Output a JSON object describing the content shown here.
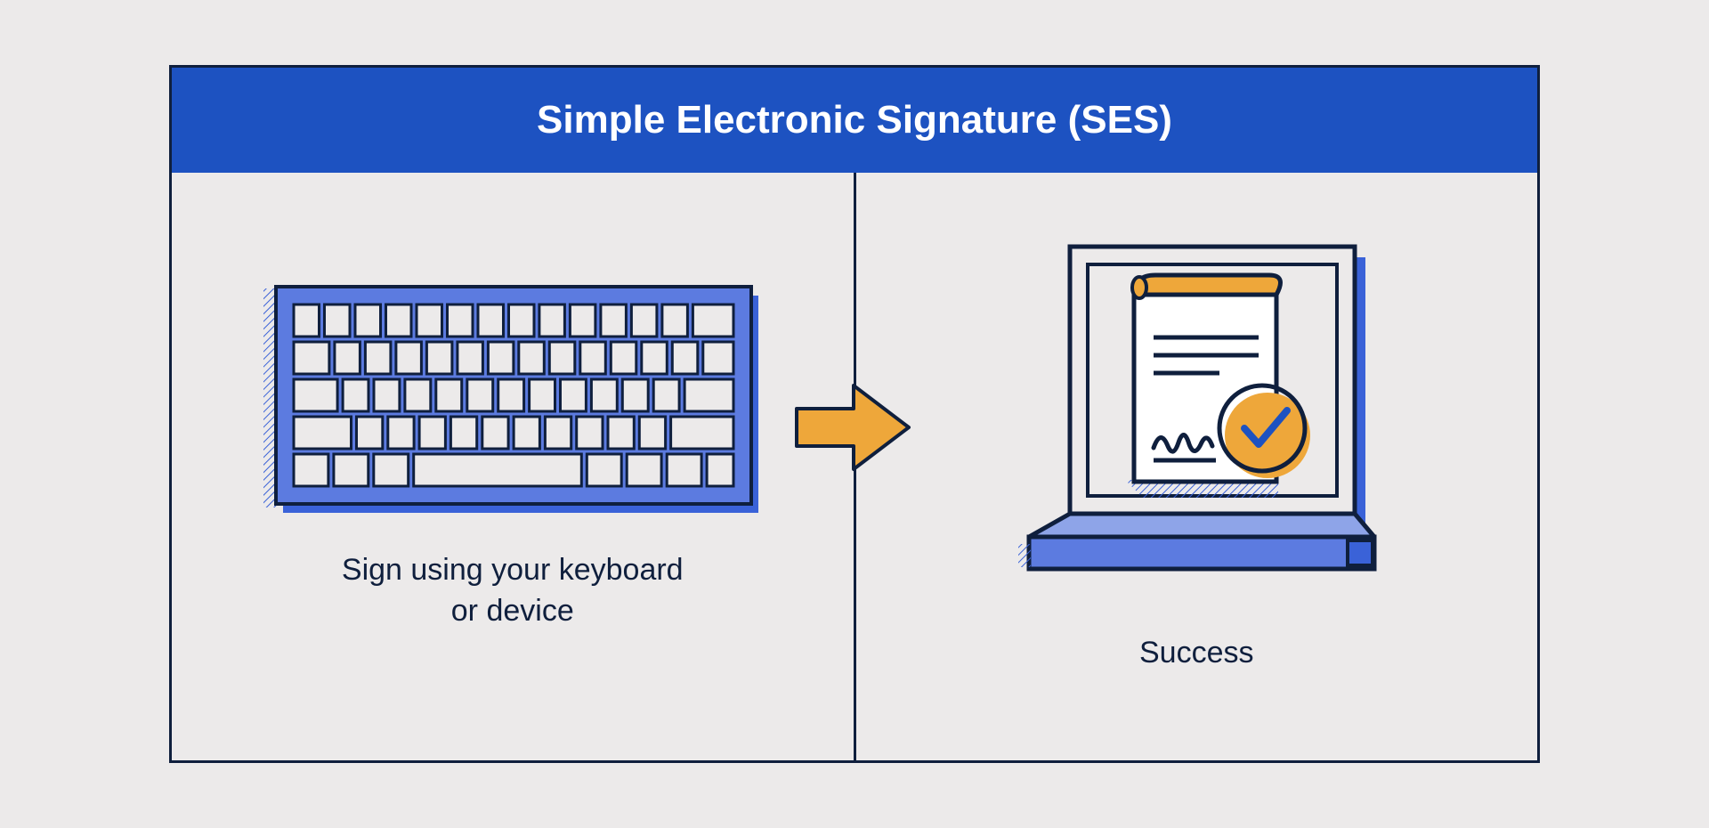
{
  "header": {
    "title": "Simple Electronic Signature (SES)",
    "background_color": "#1d52c1",
    "text_color": "#ffffff",
    "font_size_pt": 33,
    "font_weight": 700
  },
  "layout": {
    "card_border_color": "#0f1f3d",
    "card_border_width": 3,
    "background_color": "#eceaea",
    "divider_color": "#0f1f3d",
    "divider_width": 3
  },
  "left_panel": {
    "caption": "Sign using your keyboard or device",
    "icon": "keyboard-icon",
    "caption_fontsize_pt": 26,
    "caption_color": "#0f1f3d"
  },
  "arrow": {
    "fill_color": "#eea73a",
    "stroke_color": "#0f1f3d",
    "stroke_width": 3
  },
  "right_panel": {
    "caption": "Success",
    "icon": "laptop-document-icon",
    "caption_fontsize_pt": 26,
    "caption_color": "#0f1f3d"
  },
  "palette": {
    "navy": "#0f1f3d",
    "blue": "#3a62d8",
    "blue_fill": "#5c7be0",
    "orange": "#eea73a",
    "key_fill": "#eceaea",
    "white": "#ffffff"
  },
  "keyboard": {
    "outer_fill": "#5c7be0",
    "outer_stroke": "#0f1f3d",
    "key_fill": "#eceaea",
    "key_stroke": "#0f1f3d",
    "rows": [
      [
        1,
        1,
        1,
        1,
        1,
        1,
        1,
        1,
        1,
        1,
        1,
        1,
        1,
        1.6
      ],
      [
        1.4,
        1,
        1,
        1,
        1,
        1,
        1,
        1,
        1,
        1,
        1,
        1,
        1,
        1.2
      ],
      [
        1.7,
        1,
        1,
        1,
        1,
        1,
        1,
        1,
        1,
        1,
        1,
        1,
        1.9
      ],
      [
        2.2,
        1,
        1,
        1,
        1,
        1,
        1,
        1,
        1,
        1,
        1,
        2.4
      ],
      [
        1.3,
        1.3,
        1.3,
        6.3,
        1.3,
        1.3,
        1.3,
        1
      ]
    ]
  },
  "laptop": {
    "base_fill": "#5c7be0",
    "screen_stroke": "#0f1f3d",
    "document_fill": "#ffffff",
    "document_curl_fill": "#eea73a",
    "check_circle_fill": "#eea73a",
    "check_stroke": "#1d52c1"
  }
}
